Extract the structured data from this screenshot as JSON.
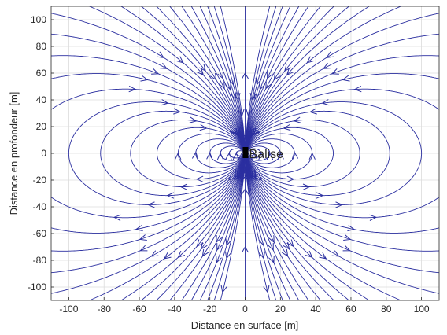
{
  "chart_data": {
    "type": "streamline",
    "title": "",
    "xlabel": "Distance en surface [m]",
    "ylabel": "Distance en profondeur [m]",
    "xlim": [
      -110,
      110
    ],
    "ylim": [
      -110,
      110
    ],
    "xticks": [
      -100,
      -80,
      -60,
      -40,
      -20,
      0,
      20,
      40,
      60,
      80,
      100
    ],
    "yticks": [
      -100,
      -80,
      -60,
      -40,
      -20,
      0,
      20,
      40,
      60,
      80,
      100
    ],
    "grid": true,
    "field": "magnetic dipole",
    "dipole_orientation": "vertical",
    "line_color": "#2b2fa0",
    "source": {
      "x": 0,
      "y": 0,
      "label": "Balise",
      "color": "#000000"
    },
    "field_line_constants": [
      2,
      5,
      9,
      14,
      20,
      28,
      38,
      50,
      65,
      82,
      100,
      125,
      155,
      190,
      235,
      290,
      360,
      450,
      560,
      700,
      900,
      1200,
      1600,
      2200,
      3100,
      4500,
      7000
    ]
  }
}
